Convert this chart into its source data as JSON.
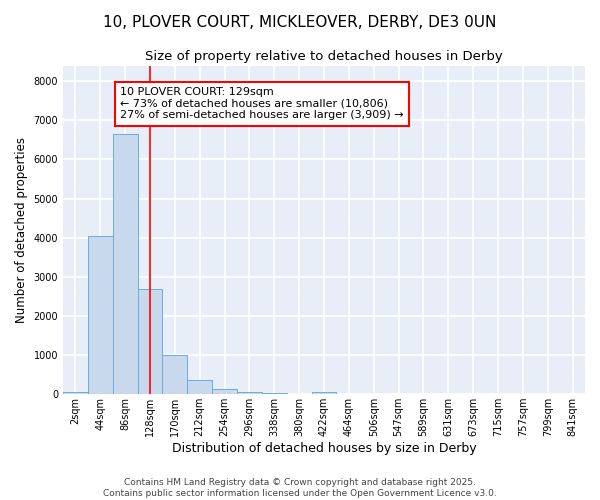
{
  "title": "10, PLOVER COURT, MICKLEOVER, DERBY, DE3 0UN",
  "subtitle": "Size of property relative to detached houses in Derby",
  "xlabel": "Distribution of detached houses by size in Derby",
  "ylabel": "Number of detached properties",
  "bar_color": "#c8d9ee",
  "bar_edge_color": "#6aaed6",
  "categories": [
    "2sqm",
    "44sqm",
    "86sqm",
    "128sqm",
    "170sqm",
    "212sqm",
    "254sqm",
    "296sqm",
    "338sqm",
    "380sqm",
    "422sqm",
    "464sqm",
    "506sqm",
    "547sqm",
    "589sqm",
    "631sqm",
    "673sqm",
    "715sqm",
    "757sqm",
    "799sqm",
    "841sqm"
  ],
  "values": [
    50,
    4050,
    6650,
    2700,
    1000,
    350,
    130,
    60,
    30,
    0,
    50,
    0,
    0,
    0,
    0,
    0,
    0,
    0,
    0,
    0,
    0
  ],
  "red_line_index": 3,
  "annotation_text": "10 PLOVER COURT: 129sqm\n← 73% of detached houses are smaller (10,806)\n27% of semi-detached houses are larger (3,909) →",
  "ylim": [
    0,
    8400
  ],
  "yticks": [
    0,
    1000,
    2000,
    3000,
    4000,
    5000,
    6000,
    7000,
    8000
  ],
  "fig_background": "#ffffff",
  "plot_background": "#e8eef8",
  "grid_color": "#ffffff",
  "footer": "Contains HM Land Registry data © Crown copyright and database right 2025.\nContains public sector information licensed under the Open Government Licence v3.0.",
  "title_fontsize": 11,
  "subtitle_fontsize": 9.5,
  "tick_fontsize": 7,
  "ylabel_fontsize": 8.5,
  "xlabel_fontsize": 9,
  "footer_fontsize": 6.5,
  "ann_fontsize": 8
}
